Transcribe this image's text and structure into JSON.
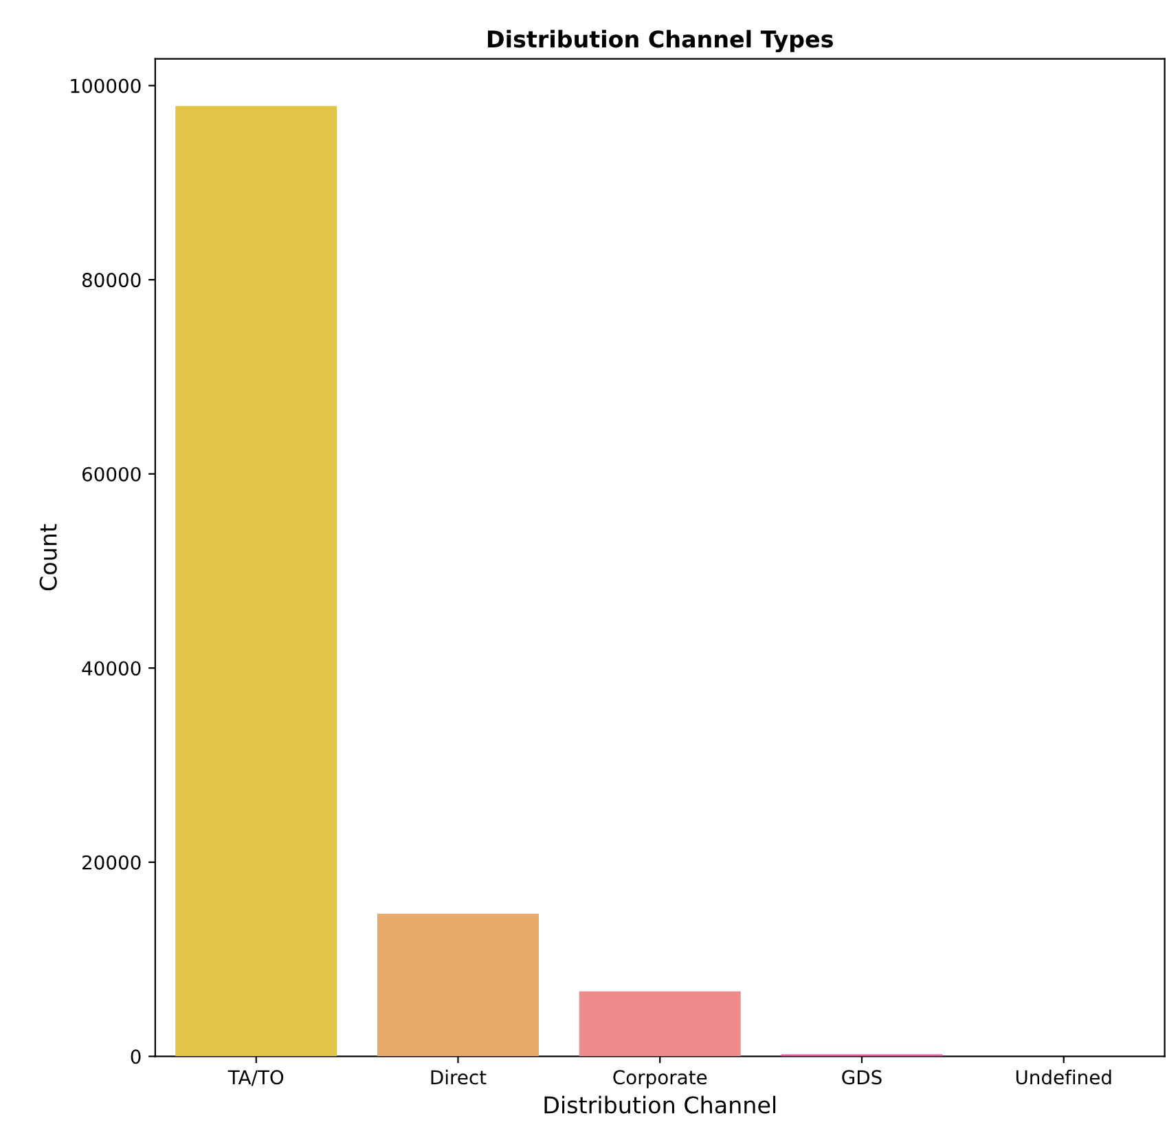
{
  "chart_data": {
    "type": "bar",
    "title": "Distribution Channel Types",
    "xlabel": "Distribution Channel",
    "ylabel": "Count",
    "categories": [
      "TA/TO",
      "Direct",
      "Corporate",
      "GDS",
      "Undefined"
    ],
    "values": [
      97900,
      14700,
      6700,
      200,
      0
    ],
    "colors": [
      "#e2c446",
      "#e9a96a",
      "#ee8b8d",
      "#e5559c",
      "#c83cb0"
    ],
    "ylim": [
      0,
      102760
    ],
    "yticks": [
      0,
      20000,
      40000,
      60000,
      80000,
      100000
    ],
    "grid": false
  }
}
